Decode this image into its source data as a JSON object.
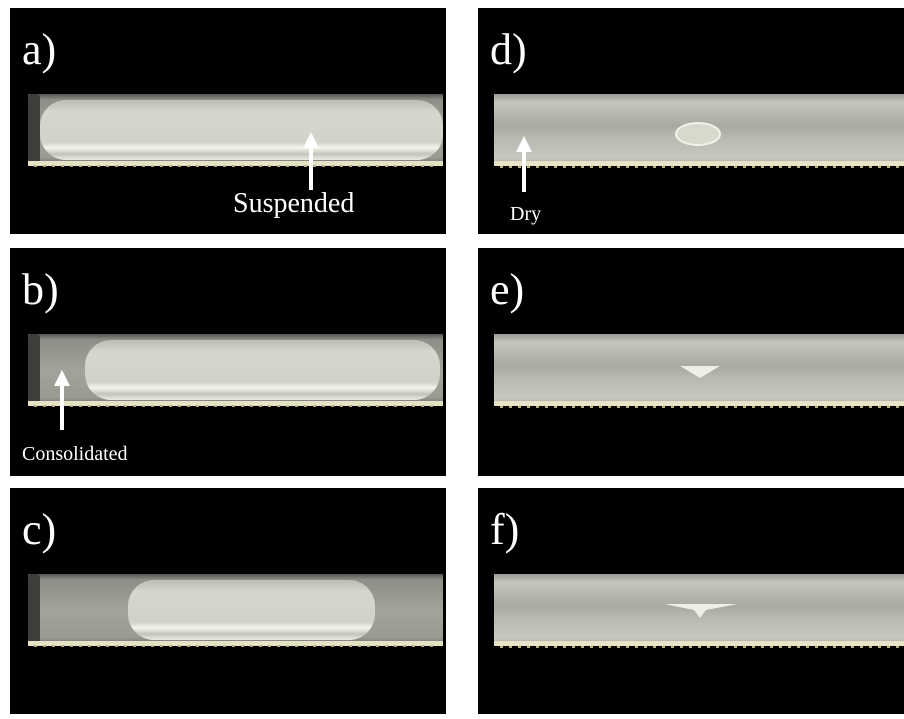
{
  "panels": [
    {
      "label": "a)",
      "annotation": "Suspended"
    },
    {
      "label": "b)",
      "annotation": "Consolidated"
    },
    {
      "label": "c)"
    },
    {
      "label": "d)",
      "annotation": "Dry"
    },
    {
      "label": "e)"
    },
    {
      "label": "f)"
    }
  ]
}
